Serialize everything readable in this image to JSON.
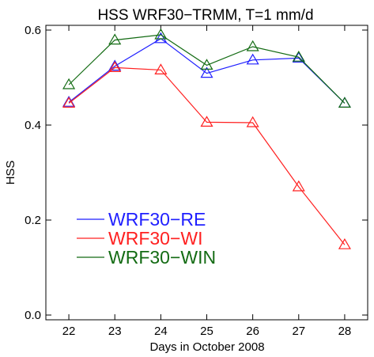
{
  "chart_data": {
    "type": "line",
    "title": "HSS WRF30−TRMM, T=1 mm/d",
    "xlabel": "Days in October 2008",
    "ylabel": "HSS",
    "x": [
      22,
      23,
      24,
      25,
      26,
      27,
      28
    ],
    "xlim": [
      21.5,
      28.5
    ],
    "ylim": [
      -0.01,
      0.61
    ],
    "yticks": [
      0.0,
      0.2,
      0.4,
      0.6
    ],
    "ytick_labels": [
      "0.0",
      "0.2",
      "0.4",
      "0.6"
    ],
    "xtick_labels": [
      "22",
      "23",
      "24",
      "25",
      "26",
      "27",
      "28"
    ],
    "marker": "triangle",
    "grid": false,
    "legend_position": "lower-left",
    "series": [
      {
        "name": "WRF30−RE",
        "color": "#1f1fff",
        "values": [
          0.448,
          0.524,
          0.582,
          0.509,
          0.537,
          0.541,
          0.446
        ]
      },
      {
        "name": "WRF30−WI",
        "color": "#ff2020",
        "values": [
          0.446,
          0.521,
          0.516,
          0.406,
          0.405,
          0.27,
          0.148
        ]
      },
      {
        "name": "WRF30−WIN",
        "color": "#136b13",
        "values": [
          0.485,
          0.579,
          0.59,
          0.526,
          0.565,
          0.543,
          0.446
        ]
      }
    ]
  }
}
